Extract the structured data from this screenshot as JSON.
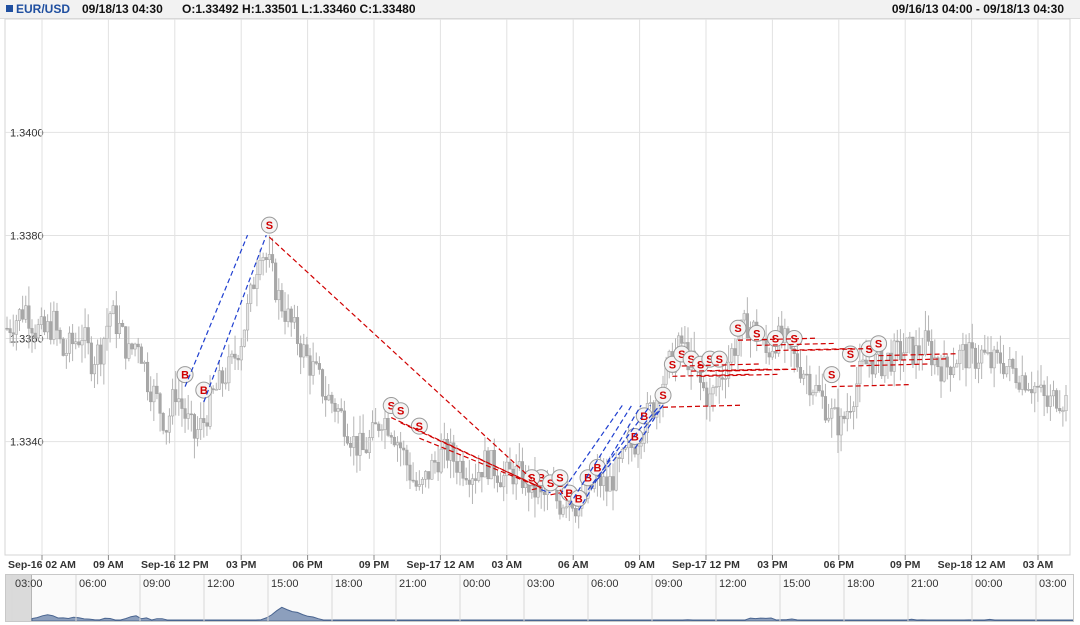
{
  "header": {
    "symbol": "EUR/USD",
    "datetime": "09/18/13 04:30",
    "ohlc": "O:1.33492 H:1.33501 L:1.33460 C:1.33480",
    "range": "09/16/13 04:00 - 09/18/13 04:30",
    "symbol_color": "#1f4fa0"
  },
  "chart_data": {
    "type": "candlestick",
    "price_axis_ticks": [
      "1.3340",
      "1.3360",
      "1.3380",
      "1.3400"
    ],
    "ylim": [
      1.3318,
      1.3422
    ],
    "time_axis_ticks": [
      "Sep-16 02 AM",
      "09 AM",
      "Sep-16 12 PM",
      "03 PM",
      "06 PM",
      "09 PM",
      "Sep-17 12 AM",
      "03 AM",
      "06 AM",
      "09 AM",
      "Sep-17 12 PM",
      "03 PM",
      "06 PM",
      "09 PM",
      "Sep-18 12 AM",
      "03 AM"
    ],
    "navigator_ticks": [
      "03:00",
      "06:00",
      "09:00",
      "12:00",
      "15:00",
      "18:00",
      "21:00",
      "00:00",
      "03:00",
      "06:00",
      "09:00",
      "12:00",
      "15:00",
      "18:00",
      "21:00",
      "00:00",
      "03:00"
    ],
    "close_path": [
      [
        0,
        1.3362
      ],
      [
        3,
        1.3364
      ],
      [
        6,
        1.3366
      ],
      [
        9,
        1.3362
      ],
      [
        12,
        1.3361
      ],
      [
        15,
        1.3363
      ],
      [
        18,
        1.3357
      ],
      [
        21,
        1.3359
      ],
      [
        24,
        1.3361
      ],
      [
        27,
        1.3356
      ],
      [
        30,
        1.3358
      ],
      [
        33,
        1.3365
      ],
      [
        36,
        1.3362
      ],
      [
        39,
        1.3357
      ],
      [
        42,
        1.336
      ],
      [
        45,
        1.3352
      ],
      [
        48,
        1.3348
      ],
      [
        51,
        1.3343
      ],
      [
        54,
        1.335
      ],
      [
        57,
        1.3345
      ],
      [
        60,
        1.3341
      ],
      [
        63,
        1.3344
      ],
      [
        66,
        1.3349
      ],
      [
        69,
        1.3352
      ],
      [
        72,
        1.3355
      ],
      [
        75,
        1.336
      ],
      [
        78,
        1.3368
      ],
      [
        81,
        1.3378
      ],
      [
        84,
        1.3374
      ],
      [
        87,
        1.3368
      ],
      [
        90,
        1.3364
      ],
      [
        93,
        1.336
      ],
      [
        96,
        1.3356
      ],
      [
        99,
        1.3353
      ],
      [
        102,
        1.3349
      ],
      [
        105,
        1.3347
      ],
      [
        108,
        1.3344
      ],
      [
        111,
        1.334
      ],
      [
        114,
        1.3338
      ],
      [
        117,
        1.3341
      ],
      [
        120,
        1.3345
      ],
      [
        123,
        1.3343
      ],
      [
        126,
        1.3339
      ],
      [
        129,
        1.3334
      ],
      [
        132,
        1.333
      ],
      [
        135,
        1.3334
      ],
      [
        138,
        1.3337
      ],
      [
        141,
        1.3338
      ],
      [
        144,
        1.3336
      ],
      [
        147,
        1.3335
      ],
      [
        150,
        1.3334
      ],
      [
        153,
        1.3336
      ],
      [
        156,
        1.3335
      ],
      [
        159,
        1.3333
      ],
      [
        162,
        1.3334
      ],
      [
        165,
        1.3333
      ],
      [
        168,
        1.3331
      ],
      [
        171,
        1.3329
      ],
      [
        174,
        1.333
      ],
      [
        177,
        1.3328
      ],
      [
        180,
        1.333
      ],
      [
        183,
        1.3327
      ],
      [
        186,
        1.333
      ],
      [
        189,
        1.3333
      ],
      [
        192,
        1.3331
      ],
      [
        195,
        1.3334
      ],
      [
        198,
        1.3337
      ],
      [
        201,
        1.334
      ],
      [
        204,
        1.3344
      ],
      [
        207,
        1.3347
      ],
      [
        210,
        1.3352
      ],
      [
        213,
        1.3356
      ],
      [
        216,
        1.3359
      ],
      [
        219,
        1.3355
      ],
      [
        222,
        1.3351
      ],
      [
        225,
        1.3348
      ],
      [
        228,
        1.3352
      ],
      [
        231,
        1.3356
      ],
      [
        234,
        1.336
      ],
      [
        237,
        1.3363
      ],
      [
        240,
        1.3361
      ],
      [
        243,
        1.3357
      ],
      [
        246,
        1.336
      ],
      [
        249,
        1.3359
      ],
      [
        252,
        1.3356
      ],
      [
        255,
        1.3354
      ],
      [
        258,
        1.3351
      ],
      [
        261,
        1.3348
      ],
      [
        264,
        1.3345
      ],
      [
        267,
        1.3343
      ],
      [
        270,
        1.3348
      ],
      [
        273,
        1.3353
      ],
      [
        276,
        1.3356
      ],
      [
        279,
        1.3355
      ],
      [
        282,
        1.3356
      ],
      [
        285,
        1.3357
      ],
      [
        288,
        1.3358
      ],
      [
        291,
        1.3357
      ],
      [
        294,
        1.3359
      ],
      [
        297,
        1.3356
      ],
      [
        300,
        1.3354
      ],
      [
        303,
        1.3356
      ],
      [
        306,
        1.3357
      ],
      [
        309,
        1.3356
      ],
      [
        312,
        1.3357
      ],
      [
        315,
        1.3355
      ],
      [
        318,
        1.3356
      ],
      [
        321,
        1.3354
      ],
      [
        324,
        1.3353
      ],
      [
        327,
        1.3352
      ],
      [
        330,
        1.335
      ],
      [
        333,
        1.3347
      ],
      [
        336,
        1.3349
      ],
      [
        339,
        1.3348
      ]
    ],
    "buy_trade_markers": [
      [
        57,
        1.3353
      ],
      [
        63,
        1.335
      ],
      [
        171,
        1.3333
      ],
      [
        177,
        1.3332
      ],
      [
        180,
        1.333
      ],
      [
        183,
        1.3329
      ],
      [
        186,
        1.3333
      ],
      [
        189,
        1.3335
      ],
      [
        201,
        1.3341
      ],
      [
        204,
        1.3345
      ]
    ],
    "sell_trade_markers": [
      [
        84,
        1.3382
      ],
      [
        123,
        1.3347
      ],
      [
        126,
        1.3346
      ],
      [
        132,
        1.3343
      ],
      [
        168,
        1.3333
      ],
      [
        174,
        1.3332
      ],
      [
        177,
        1.3333
      ],
      [
        210,
        1.3349
      ],
      [
        213,
        1.3355
      ],
      [
        216,
        1.3357
      ],
      [
        219,
        1.3356
      ],
      [
        222,
        1.3355
      ],
      [
        225,
        1.3356
      ],
      [
        228,
        1.3356
      ],
      [
        234,
        1.3362
      ],
      [
        240,
        1.3361
      ],
      [
        246,
        1.336
      ],
      [
        252,
        1.336
      ],
      [
        264,
        1.3353
      ],
      [
        270,
        1.3357
      ],
      [
        276,
        1.3358
      ],
      [
        279,
        1.3359
      ]
    ],
    "buy_color": "#1f3fd0",
    "sell_color": "#d00000"
  }
}
